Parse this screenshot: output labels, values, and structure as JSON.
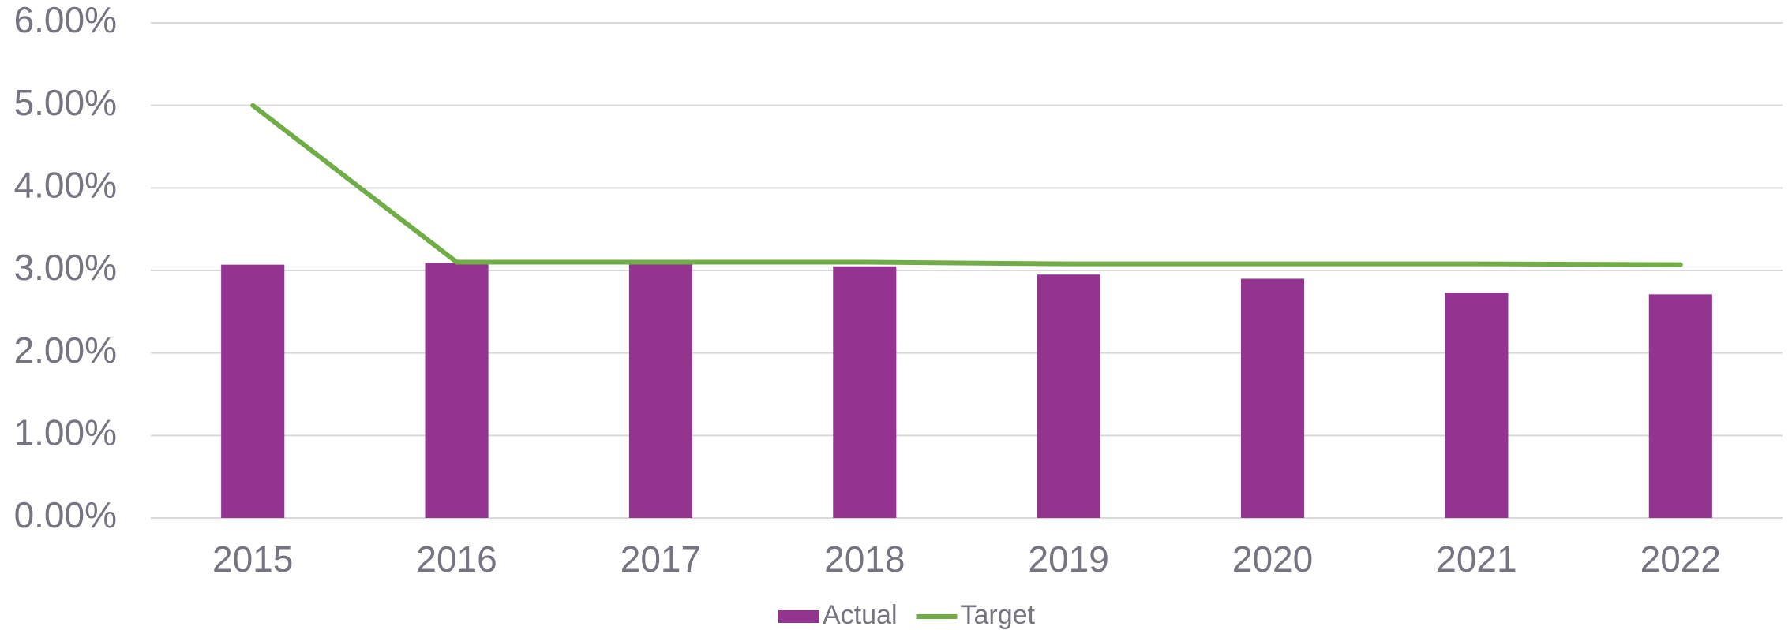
{
  "chart_data": {
    "type": "bar",
    "categories": [
      "2015",
      "2016",
      "2017",
      "2018",
      "2019",
      "2020",
      "2021",
      "2022"
    ],
    "series": [
      {
        "name": "Actual",
        "type": "bar",
        "color": "#923490",
        "values": [
          3.07,
          3.09,
          3.08,
          3.05,
          2.95,
          2.9,
          2.73,
          2.71
        ]
      },
      {
        "name": "Target",
        "type": "line",
        "color": "#70ad47",
        "values": [
          5.0,
          3.1,
          3.1,
          3.1,
          3.08,
          3.08,
          3.08,
          3.07
        ]
      }
    ],
    "ylim": [
      0,
      6
    ],
    "yticks": [
      {
        "value": 0,
        "label": "0.00%"
      },
      {
        "value": 1,
        "label": "1.00%"
      },
      {
        "value": 2,
        "label": "2.00%"
      },
      {
        "value": 3,
        "label": "3.00%"
      },
      {
        "value": 4,
        "label": "4.00%"
      },
      {
        "value": 5,
        "label": "5.00%"
      },
      {
        "value": 6,
        "label": "6.00%"
      }
    ],
    "grid": true,
    "legend": "bottom"
  }
}
